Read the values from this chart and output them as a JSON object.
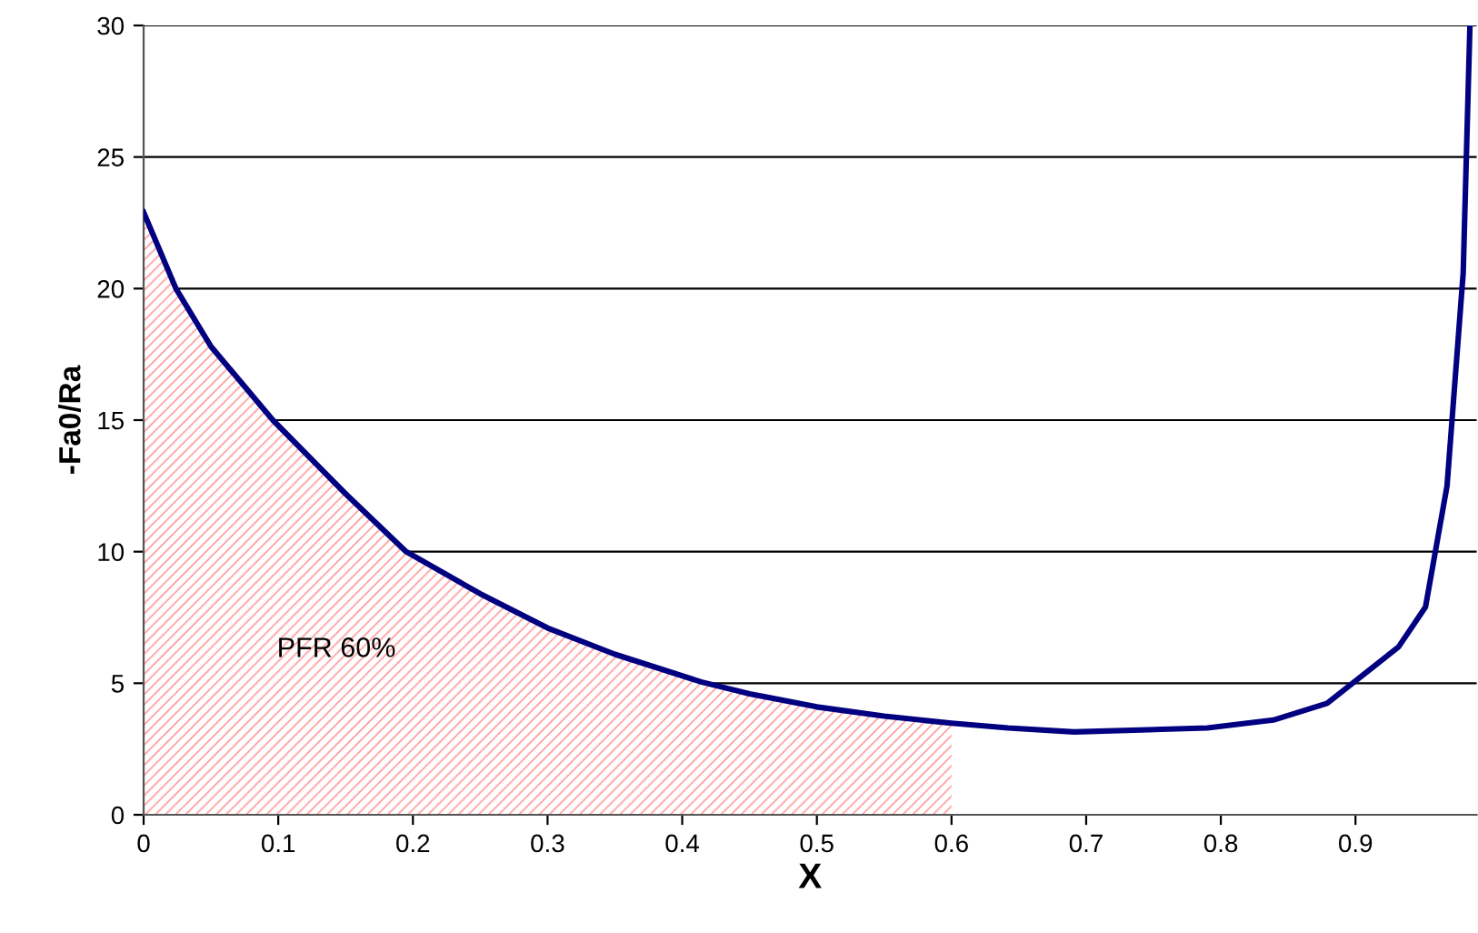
{
  "chart_data": {
    "type": "line",
    "xlabel": "X",
    "ylabel": "-Fa0/Ra",
    "series": [
      {
        "type": "area",
        "color": "#ff9999",
        "x": [
          0,
          0.024,
          0.05,
          0.096,
          0.15,
          0.195,
          0.25,
          0.3,
          0.35,
          0.414,
          0.45,
          0.5,
          0.55,
          0.6
        ],
        "values": [
          22.9,
          20,
          17.8,
          15.0,
          12.2,
          10,
          8.4,
          7.1,
          6.1,
          5.05,
          4.6,
          4.1,
          3.75,
          3.48
        ]
      },
      {
        "color": "#000080",
        "x": [
          0,
          0.024,
          0.05,
          0.096,
          0.15,
          0.195,
          0.25,
          0.3,
          0.35,
          0.414,
          0.45,
          0.5,
          0.55,
          0.6,
          0.642,
          0.691,
          0.79,
          0.839,
          0.879,
          0.932,
          0.952,
          0.968,
          0.98,
          0.985
        ],
        "values": [
          22.9,
          20,
          17.8,
          15.0,
          12.2,
          10,
          8.4,
          7.1,
          6.1,
          5.05,
          4.6,
          4.1,
          3.75,
          3.48,
          3.3,
          3.15,
          3.3,
          3.6,
          4.24,
          6.38,
          7.9,
          12.5,
          20.6,
          30
        ]
      }
    ],
    "xlim": [
      0,
      0.99
    ],
    "xticks": [
      0,
      0.1,
      0.2,
      0.3,
      0.4,
      0.5,
      0.6,
      0.7,
      0.8,
      0.9
    ],
    "ylim": [
      0,
      30
    ],
    "yticks": [
      0,
      5,
      10,
      15,
      20,
      25,
      30
    ],
    "grid": "y",
    "legend": false,
    "marker": "none",
    "line_style": "solid",
    "annotations": [
      "PFR 60%"
    ]
  }
}
